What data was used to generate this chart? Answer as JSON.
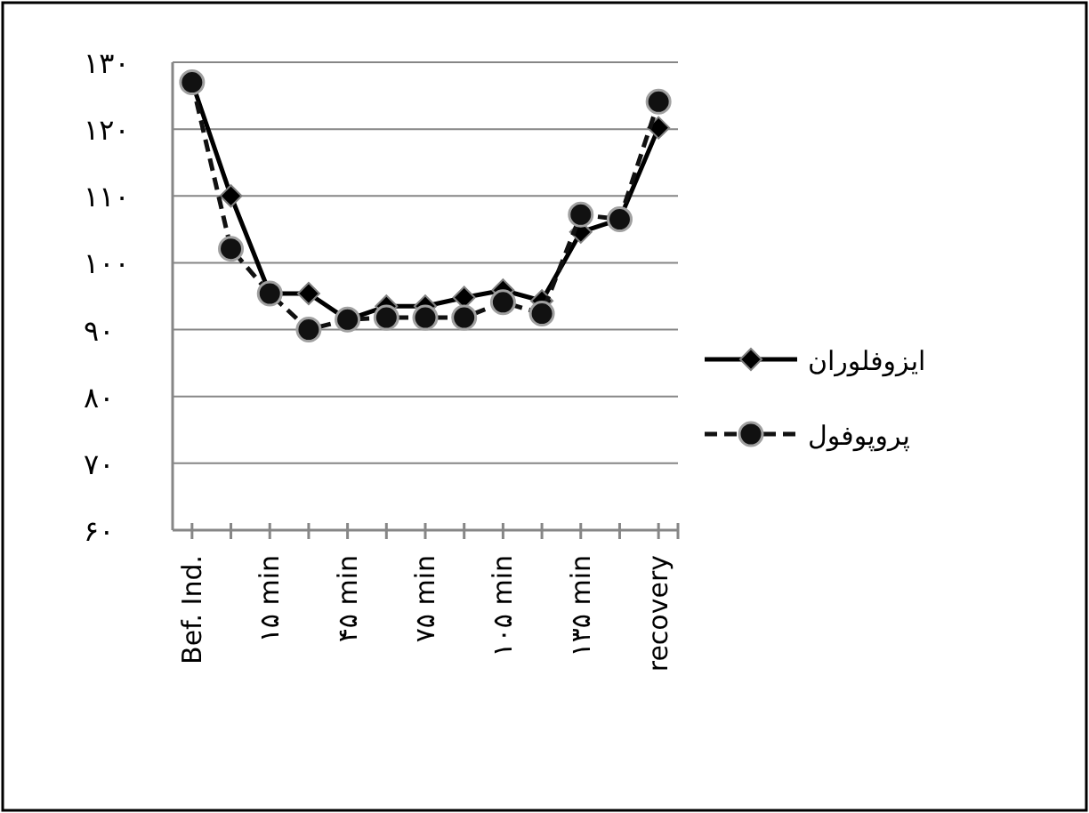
{
  "chart_data": {
    "type": "line",
    "categories": [
      "Bef. Ind.",
      null,
      "۱۵ min",
      null,
      "۴۵ min",
      null,
      "۷۵ min",
      null,
      "۱۰۵ min",
      null,
      "۱۳۵ min",
      null,
      "recovery"
    ],
    "series": [
      {
        "name": "ایزوفلوران",
        "color": "#000000",
        "marker": "diamond",
        "line_style": "solid",
        "values": [
          127,
          110,
          95.4,
          95.4,
          91.5,
          93.5,
          93.5,
          94.8,
          95.9,
          94.3,
          104.6,
          106.5,
          120.2
        ]
      },
      {
        "name": "پروپوفول",
        "color": "#111111",
        "marker": "circle",
        "line_style": "dashed",
        "values": [
          127,
          102.1,
          95.4,
          90,
          91.5,
          91.8,
          91.8,
          91.8,
          94.1,
          92.4,
          107.2,
          106.5,
          124.1
        ]
      }
    ],
    "ylim": [
      60,
      130
    ],
    "yticks": [
      {
        "value": 60,
        "label": "۶۰"
      },
      {
        "value": 70,
        "label": "۷۰"
      },
      {
        "value": 80,
        "label": "۸۰"
      },
      {
        "value": 90,
        "label": "۹۰"
      },
      {
        "value": 100,
        "label": "۱۰۰"
      },
      {
        "value": 110,
        "label": "۱۱۰"
      },
      {
        "value": 120,
        "label": "۱۲۰"
      },
      {
        "value": 130,
        "label": "۱۳۰"
      }
    ],
    "grid": "y",
    "legend": "right"
  }
}
